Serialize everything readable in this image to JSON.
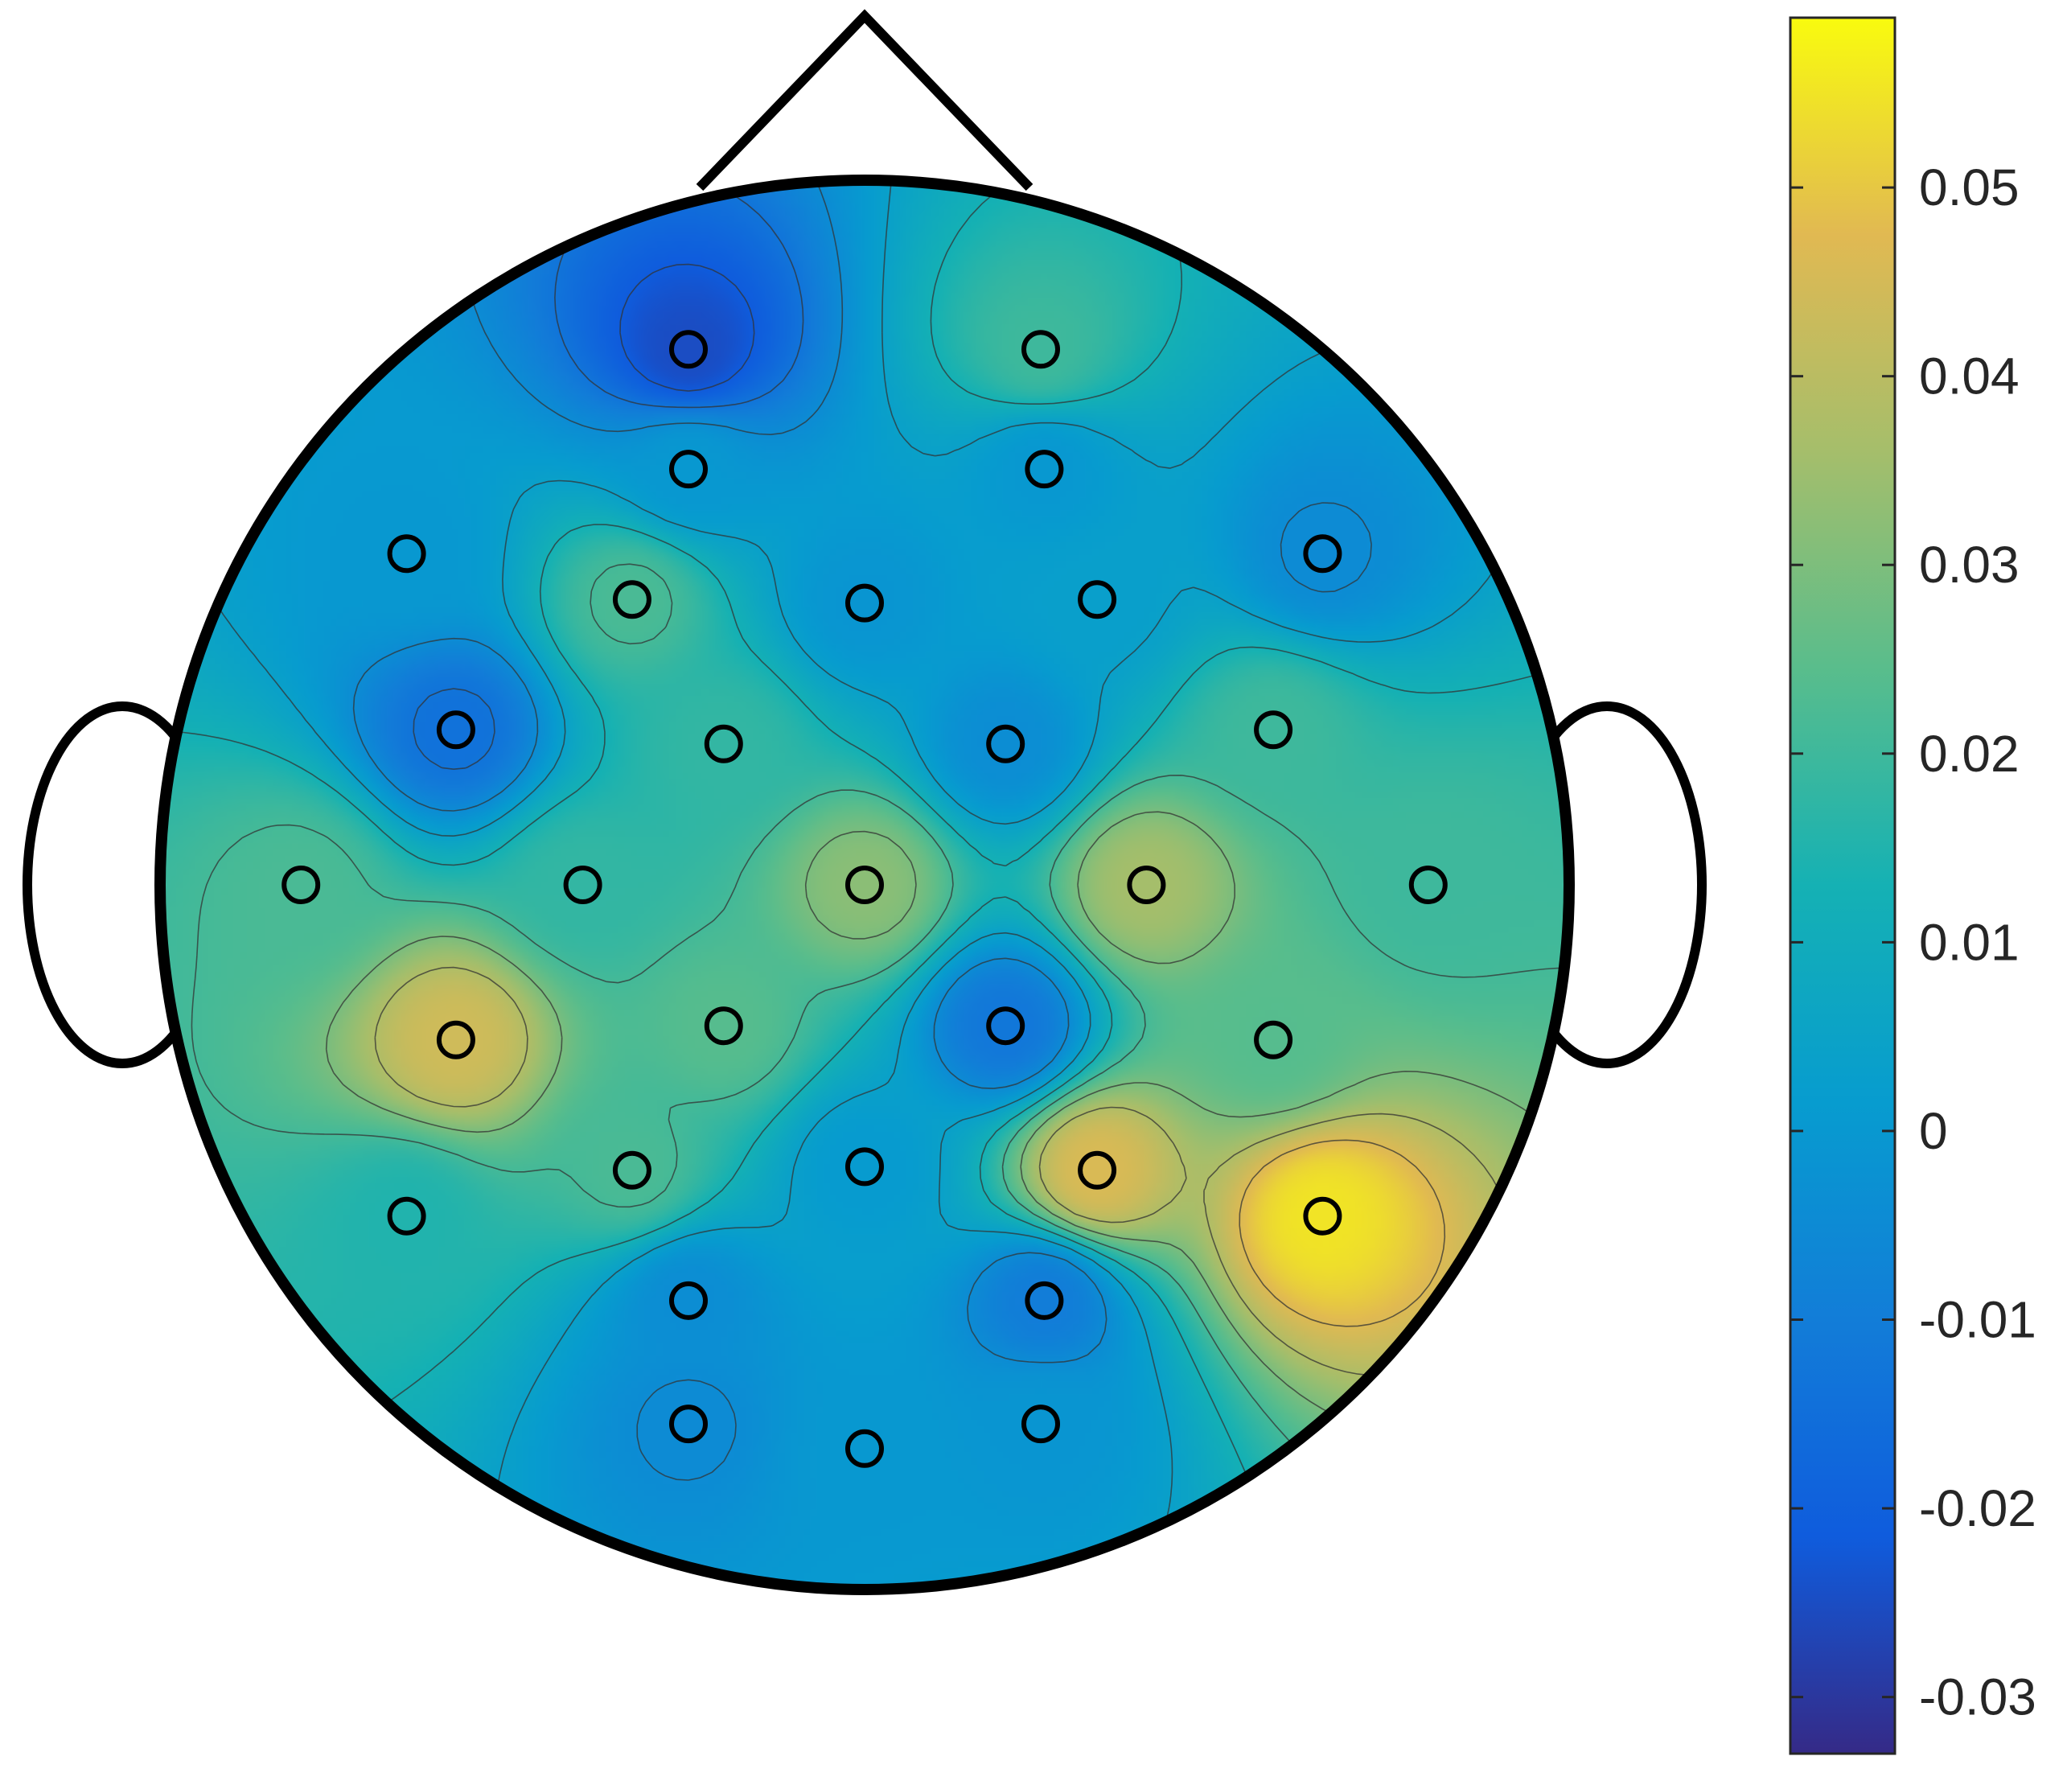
{
  "chart_data": {
    "type": "heatmap",
    "subtype": "eeg-topographic-map",
    "title": "",
    "colormap": "parula",
    "colorbar": {
      "position": "right",
      "range": [
        -0.033,
        0.059
      ],
      "ticks": [
        -0.03,
        -0.02,
        -0.01,
        0,
        0.01,
        0.02,
        0.03,
        0.04,
        0.05
      ],
      "tick_labels": [
        "-0.03",
        "-0.02",
        "-0.01",
        "0",
        "0.01",
        "0.02",
        "0.03",
        "0.04",
        "0.05"
      ]
    },
    "contour_lines": "dashed",
    "electrodes": [
      {
        "x": -0.25,
        "y": 0.76,
        "value": -0.025
      },
      {
        "x": 0.25,
        "y": 0.76,
        "value": 0.02
      },
      {
        "x": -0.25,
        "y": 0.59,
        "value": 0.0
      },
      {
        "x": 0.255,
        "y": 0.59,
        "value": 0.0
      },
      {
        "x": -0.65,
        "y": 0.47,
        "value": 0.0
      },
      {
        "x": -0.33,
        "y": 0.405,
        "value": 0.022
      },
      {
        "x": 0.0,
        "y": 0.4,
        "value": -0.001
      },
      {
        "x": 0.33,
        "y": 0.405,
        "value": 0.003
      },
      {
        "x": 0.65,
        "y": 0.47,
        "value": -0.005
      },
      {
        "x": -0.58,
        "y": 0.22,
        "value": -0.014
      },
      {
        "x": -0.2,
        "y": 0.2,
        "value": 0.018
      },
      {
        "x": 0.2,
        "y": 0.2,
        "value": -0.004
      },
      {
        "x": 0.58,
        "y": 0.22,
        "value": 0.02
      },
      {
        "x": -0.8,
        "y": 0.0,
        "value": 0.022
      },
      {
        "x": -0.4,
        "y": 0.0,
        "value": 0.018
      },
      {
        "x": 0.0,
        "y": 0.0,
        "value": 0.032
      },
      {
        "x": 0.4,
        "y": 0.0,
        "value": 0.036
      },
      {
        "x": 0.8,
        "y": 0.0,
        "value": 0.02
      },
      {
        "x": -0.58,
        "y": -0.22,
        "value": 0.044
      },
      {
        "x": -0.2,
        "y": -0.2,
        "value": 0.024
      },
      {
        "x": 0.2,
        "y": -0.2,
        "value": -0.012
      },
      {
        "x": 0.58,
        "y": -0.22,
        "value": 0.024
      },
      {
        "x": -0.33,
        "y": -0.405,
        "value": 0.022
      },
      {
        "x": 0.0,
        "y": -0.4,
        "value": 0.001
      },
      {
        "x": 0.33,
        "y": -0.405,
        "value": 0.046
      },
      {
        "x": 0.65,
        "y": -0.47,
        "value": 0.055
      },
      {
        "x": -0.65,
        "y": -0.47,
        "value": 0.015
      },
      {
        "x": -0.25,
        "y": -0.59,
        "value": -0.004
      },
      {
        "x": 0.255,
        "y": -0.59,
        "value": -0.01
      },
      {
        "x": -0.25,
        "y": -0.765,
        "value": -0.005
      },
      {
        "x": 0.25,
        "y": -0.765,
        "value": -0.001
      },
      {
        "x": 0.0,
        "y": -0.8,
        "value": 0.0
      }
    ]
  }
}
